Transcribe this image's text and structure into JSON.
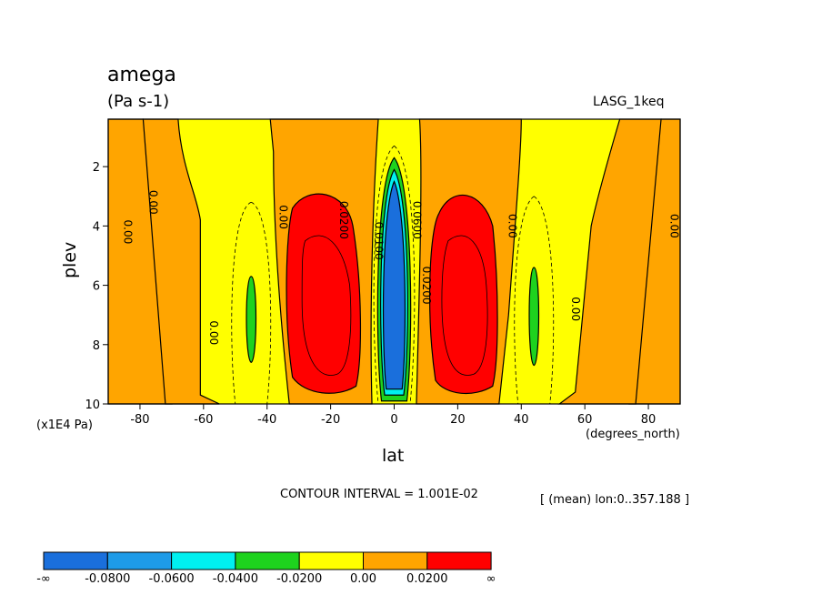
{
  "chart_data": {
    "type": "heatmap",
    "title": "amega",
    "units": "(Pa s-1)",
    "dataset": "LASG_1keq",
    "xlabel": "lat",
    "ylabel": "plev",
    "x_units": "(degrees_north)",
    "y_units": "(x1E4 Pa)",
    "xlim": [
      -90,
      90
    ],
    "ylim": [
      10,
      0.4
    ],
    "x_ticks": [
      -80,
      -60,
      -40,
      -20,
      0,
      20,
      40,
      60,
      80
    ],
    "x_tick_labels": [
      "-80",
      "-60",
      "-40",
      "-20",
      "0",
      "20",
      "40",
      "60",
      "80"
    ],
    "y_ticks": [
      2,
      4,
      6,
      8,
      10
    ],
    "y_tick_labels": [
      "2",
      "4",
      "6",
      "8",
      "10"
    ],
    "contour_interval": "CONTOUR INTERVAL = 1.001E-02",
    "mean_note": "[ (mean) lon:0..357.188 ]",
    "contour_labels": [
      {
        "text": "0.00",
        "lat": -85,
        "plev": 4.2
      },
      {
        "text": "0.00",
        "lat": -77,
        "plev": 3.2
      },
      {
        "text": "0.00",
        "lat": -58,
        "plev": 7.6
      },
      {
        "text": "0.00",
        "lat": -36,
        "plev": 3.7
      },
      {
        "text": "0.0200",
        "lat": -17,
        "plev": 3.8
      },
      {
        "text": "0.0100",
        "lat": -6,
        "plev": 4.5
      },
      {
        "text": "0.0600",
        "lat": 6,
        "plev": 3.8
      },
      {
        "text": "0.0200",
        "lat": 9,
        "plev": 6.0
      },
      {
        "text": "0.00",
        "lat": 36,
        "plev": 4.0
      },
      {
        "text": "0.00",
        "lat": 56,
        "plev": 6.8
      },
      {
        "text": "0.00",
        "lat": 87,
        "plev": 4.0
      }
    ],
    "colorbar": {
      "colors": [
        "#1a6fdc",
        "#1e9be8",
        "#00f0f0",
        "#1ed21e",
        "#ffff00",
        "#ffa500",
        "#ff0000"
      ],
      "labels": [
        "-∞",
        "-0.0800",
        "-0.0600",
        "-0.0400",
        "-0.0200",
        "0.00",
        "0.0200",
        "∞"
      ]
    },
    "fill_colors": {
      "strong_neg": "#1a6fdc",
      "mid_neg": "#00f0f0",
      "neg": "#1ed21e",
      "near_zero": "#ffff00",
      "pos": "#ffa500",
      "strong_pos": "#ff0000"
    }
  }
}
